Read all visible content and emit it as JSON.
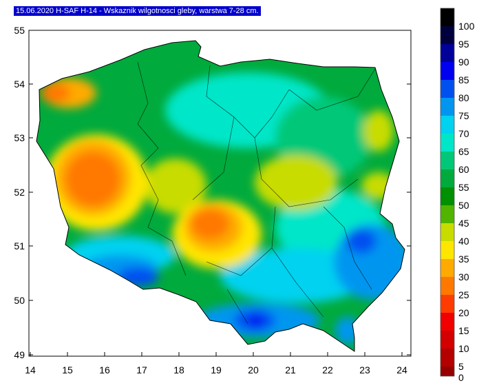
{
  "title": "15.06.2020 H-SAF H-14 - Wskaznik wilgotnosci gleby, warstwa 7-28 cm.",
  "axes": {
    "y_ticks": [
      "55",
      "54",
      "53",
      "52",
      "51",
      "50",
      "49"
    ],
    "x_ticks": [
      "14",
      "15",
      "16",
      "17",
      "18",
      "19",
      "20",
      "21",
      "22",
      "23",
      "24"
    ]
  },
  "legend": {
    "labels": [
      "100",
      "95",
      "90",
      "85",
      "80",
      "75",
      "70",
      "65",
      "60",
      "55",
      "50",
      "45",
      "40",
      "35",
      "30",
      "25",
      "20",
      "15",
      "10",
      "5",
      "0"
    ],
    "colors": [
      "#000000",
      "#00003c",
      "#00009a",
      "#0000f0",
      "#0050f0",
      "#0096f0",
      "#00d2f0",
      "#00e6c8",
      "#00c878",
      "#00aa3c",
      "#009000",
      "#50b400",
      "#c8dc00",
      "#ffe600",
      "#ffaa00",
      "#ff7800",
      "#ff3c00",
      "#f00000",
      "#d20000",
      "#b40000",
      "#960000"
    ]
  }
}
